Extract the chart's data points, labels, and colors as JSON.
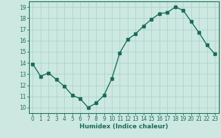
{
  "x": [
    0,
    1,
    2,
    3,
    4,
    5,
    6,
    7,
    8,
    9,
    10,
    11,
    12,
    13,
    14,
    15,
    16,
    17,
    18,
    19,
    20,
    21,
    22,
    23
  ],
  "y": [
    13.9,
    12.8,
    13.1,
    12.5,
    11.9,
    11.1,
    10.8,
    10.0,
    10.4,
    11.1,
    12.6,
    14.9,
    16.1,
    16.6,
    17.3,
    17.9,
    18.4,
    18.5,
    19.0,
    18.7,
    17.7,
    16.7,
    15.6,
    14.8
  ],
  "line_color": "#1a6b5a",
  "marker": "s",
  "markersize": 2.5,
  "linewidth": 1.0,
  "bg_color": "#cce8e0",
  "grid_color": "#aad4cc",
  "xlabel": "Humidex (Indice chaleur)",
  "xlim": [
    -0.5,
    23.5
  ],
  "ylim": [
    9.5,
    19.5
  ],
  "yticks": [
    10,
    11,
    12,
    13,
    14,
    15,
    16,
    17,
    18,
    19
  ],
  "xticks": [
    0,
    1,
    2,
    3,
    4,
    5,
    6,
    7,
    8,
    9,
    10,
    11,
    12,
    13,
    14,
    15,
    16,
    17,
    18,
    19,
    20,
    21,
    22,
    23
  ],
  "tick_color": "#1a6b5a",
  "label_fontsize": 6.5,
  "tick_fontsize": 5.5
}
